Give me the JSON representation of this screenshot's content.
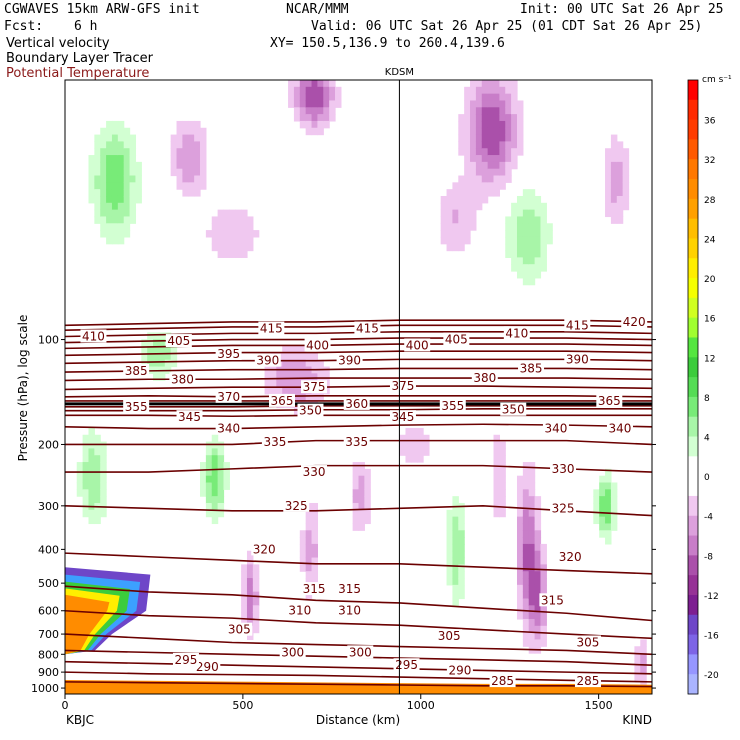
{
  "header": {
    "model": "CGWAVES 15km ARW-GFS init",
    "center": "NCAR/MMM",
    "init": "Init: 00 UTC Sat 26 Apr 25",
    "fcst_label": "Fcst:",
    "fcst_value": "6 h",
    "valid": "Valid: 06 UTC Sat 26 Apr 25 (01 CDT Sat 26 Apr 25)",
    "xy": "XY= 150.5,136.9 to 260.4,139.6",
    "field1": "Vertical velocity",
    "field2": "Boundary Layer Tracer",
    "field3": "Potential Temperature"
  },
  "colors": {
    "theta_contour": "#6b0000",
    "field3_text": "#8b1a1a"
  },
  "chart_data": {
    "type": "cross-section",
    "station_marker": "KDSM",
    "station_x_km": 940,
    "left_endpoint": "KBJC",
    "right_endpoint": "KIND",
    "xlabel": "Distance (km)",
    "ylabel": "Pressure (hPa), log scale",
    "xlim": [
      0,
      1650
    ],
    "ylim": [
      1040,
      18
    ],
    "x_ticks": [
      0,
      500,
      1000,
      1500
    ],
    "y_ticks": [
      100,
      200,
      300,
      400,
      500,
      600,
      700,
      800,
      900,
      1000
    ],
    "colorbar": {
      "unit": "cm s⁻¹",
      "tick_labels": [
        "36",
        "32",
        "28",
        "24",
        "20",
        "16",
        "12",
        "8",
        "4",
        "0",
        "-4",
        "-8",
        "-12",
        "-16",
        "-20"
      ],
      "tick_values": [
        36,
        32,
        28,
        24,
        20,
        16,
        12,
        8,
        4,
        0,
        -4,
        -8,
        -12,
        -16,
        -20
      ],
      "bins": [
        {
          "lo": 38,
          "hi": 40,
          "color": "#ff0000"
        },
        {
          "lo": 36,
          "hi": 38,
          "color": "#ff2a00"
        },
        {
          "lo": 34,
          "hi": 36,
          "color": "#ff3c00"
        },
        {
          "lo": 32,
          "hi": 34,
          "color": "#ff5a00"
        },
        {
          "lo": 30,
          "hi": 32,
          "color": "#ff7800"
        },
        {
          "lo": 28,
          "hi": 30,
          "color": "#ff8c00"
        },
        {
          "lo": 26,
          "hi": 28,
          "color": "#ffa000"
        },
        {
          "lo": 24,
          "hi": 26,
          "color": "#ffbe00"
        },
        {
          "lo": 22,
          "hi": 24,
          "color": "#ffd200"
        },
        {
          "lo": 20,
          "hi": 22,
          "color": "#ffee00"
        },
        {
          "lo": 18,
          "hi": 20,
          "color": "#f5ff00"
        },
        {
          "lo": 16,
          "hi": 18,
          "color": "#d0ff20"
        },
        {
          "lo": 14,
          "hi": 16,
          "color": "#a0ff30"
        },
        {
          "lo": 12,
          "hi": 14,
          "color": "#55e640"
        },
        {
          "lo": 10,
          "hi": 12,
          "color": "#3ccc3c"
        },
        {
          "lo": 8,
          "hi": 10,
          "color": "#55dc55"
        },
        {
          "lo": 6,
          "hi": 8,
          "color": "#78eb78"
        },
        {
          "lo": 4,
          "hi": 6,
          "color": "#a8f5a8"
        },
        {
          "lo": 2,
          "hi": 4,
          "color": "#d2ffd2"
        },
        {
          "lo": 0,
          "hi": 2,
          "color": "#ffffff"
        },
        {
          "lo": -2,
          "hi": 0,
          "color": "#ffffff"
        },
        {
          "lo": -4,
          "hi": -2,
          "color": "#f0c8f0"
        },
        {
          "lo": -6,
          "hi": -4,
          "color": "#dca0dc"
        },
        {
          "lo": -8,
          "hi": -6,
          "color": "#c87dc8"
        },
        {
          "lo": -10,
          "hi": -8,
          "color": "#aa50aa"
        },
        {
          "lo": -12,
          "hi": -10,
          "color": "#963296"
        },
        {
          "lo": -14,
          "hi": -12,
          "color": "#7d1e91"
        },
        {
          "lo": -16,
          "hi": -14,
          "color": "#6e46c8"
        },
        {
          "lo": -18,
          "hi": -16,
          "color": "#7d64e6"
        },
        {
          "lo": -20,
          "hi": -18,
          "color": "#9696ff"
        },
        {
          "lo": -22,
          "hi": -20,
          "color": "#aab4ff"
        }
      ]
    },
    "w_blobs": [
      {
        "x": 140,
        "p": 35,
        "rx": 60,
        "rp": 0.35,
        "w": 8
      },
      {
        "x": 350,
        "p": 30,
        "rx": 50,
        "rp": 0.25,
        "w": -6
      },
      {
        "x": 700,
        "p": 20,
        "rx": 55,
        "rp": 0.2,
        "w": -10
      },
      {
        "x": 1200,
        "p": 25,
        "rx": 70,
        "rp": 0.35,
        "w": -10
      },
      {
        "x": 1550,
        "p": 35,
        "rx": 40,
        "rp": 0.3,
        "w": -5
      },
      {
        "x": 470,
        "p": 50,
        "rx": 80,
        "rp": 0.2,
        "w": -4
      },
      {
        "x": 1300,
        "p": 50,
        "rx": 60,
        "rp": 0.3,
        "w": 6
      },
      {
        "x": 1100,
        "p": 45,
        "rx": 60,
        "rp": 0.25,
        "w": -4
      },
      {
        "x": 650,
        "p": 130,
        "rx": 90,
        "rp": 0.2,
        "w": -6
      },
      {
        "x": 260,
        "p": 110,
        "rx": 50,
        "rp": 0.15,
        "w": 6
      },
      {
        "x": 1220,
        "p": 250,
        "rx": 25,
        "rp": 0.35,
        "w": -4
      },
      {
        "x": 420,
        "p": 250,
        "rx": 30,
        "rp": 0.25,
        "w": 8
      },
      {
        "x": 1300,
        "p": 400,
        "rx": 30,
        "rp": 0.5,
        "w": -8
      },
      {
        "x": 1520,
        "p": 300,
        "rx": 25,
        "rp": 0.2,
        "w": 8
      },
      {
        "x": 1100,
        "p": 400,
        "rx": 25,
        "rp": 0.35,
        "w": 6
      },
      {
        "x": 830,
        "p": 280,
        "rx": 30,
        "rp": 0.25,
        "w": -5
      },
      {
        "x": 690,
        "p": 400,
        "rx": 25,
        "rp": 0.35,
        "w": -5
      },
      {
        "x": 520,
        "p": 550,
        "rx": 20,
        "rp": 0.25,
        "w": -8
      },
      {
        "x": 1330,
        "p": 550,
        "rx": 25,
        "rp": 0.3,
        "w": -7
      },
      {
        "x": 1620,
        "p": 850,
        "rx": 20,
        "rp": 0.15,
        "w": -5
      },
      {
        "x": 80,
        "p": 250,
        "rx": 40,
        "rp": 0.3,
        "w": 6
      },
      {
        "x": 980,
        "p": 200,
        "rx": 50,
        "rp": 0.15,
        "w": -4
      }
    ],
    "tracer_region": {
      "max_x": 240,
      "top_p": 450
    },
    "theta_contours": [
      {
        "theta": 285,
        "p": [
          960,
          965,
          970,
          975,
          980,
          985,
          985,
          990
        ]
      },
      {
        "theta": 290,
        "p": [
          900,
          910,
          915,
          920,
          930,
          940,
          950,
          960
        ]
      },
      {
        "theta": 295,
        "p": [
          840,
          850,
          860,
          870,
          880,
          890,
          900,
          910
        ]
      },
      {
        "theta": 300,
        "p": [
          780,
          790,
          800,
          810,
          820,
          830,
          840,
          860
        ]
      },
      {
        "theta": 305,
        "p": [
          700,
          720,
          740,
          750,
          760,
          770,
          780,
          800
        ]
      },
      {
        "theta": 310,
        "p": [
          600,
          620,
          630,
          650,
          660,
          680,
          700,
          720
        ]
      },
      {
        "theta": 315,
        "p": [
          510,
          530,
          540,
          560,
          570,
          590,
          610,
          640
        ]
      },
      {
        "theta": 320,
        "p": [
          410,
          420,
          430,
          440,
          440,
          450,
          460,
          470
        ]
      },
      {
        "theta": 325,
        "p": [
          300,
          305,
          310,
          310,
          305,
          300,
          310,
          320
        ]
      },
      {
        "theta": 330,
        "p": [
          240,
          240,
          235,
          230,
          230,
          230,
          235,
          240
        ]
      },
      {
        "theta": 335,
        "p": [
          200,
          200,
          200,
          195,
          195,
          195,
          195,
          200
        ]
      },
      {
        "theta": 340,
        "p": [
          178,
          180,
          180,
          178,
          176,
          175,
          176,
          178
        ]
      },
      {
        "theta": 345,
        "p": [
          165,
          165,
          166,
          165,
          165,
          165,
          165,
          165
        ]
      },
      {
        "theta": 350,
        "p": [
          160,
          160,
          160,
          159,
          159,
          158,
          158,
          158
        ]
      },
      {
        "theta": 355,
        "p": [
          156,
          156,
          156,
          155,
          155,
          155,
          155,
          155
        ]
      },
      {
        "theta": 360,
        "p": [
          153,
          153,
          153,
          153,
          153,
          153,
          153,
          153
        ]
      },
      {
        "theta": 365,
        "p": [
          150,
          150,
          150,
          150,
          150,
          150,
          150,
          150
        ]
      },
      {
        "theta": 370,
        "p": [
          146,
          145,
          146,
          145,
          145,
          145,
          145,
          146
        ]
      },
      {
        "theta": 375,
        "p": [
          139,
          138,
          137,
          137,
          136,
          136,
          137,
          138
        ]
      },
      {
        "theta": 380,
        "p": [
          131,
          130,
          130,
          129,
          129,
          129,
          129,
          130
        ]
      },
      {
        "theta": 385,
        "p": [
          124,
          123,
          122,
          122,
          121,
          121,
          121,
          122
        ]
      },
      {
        "theta": 390,
        "p": [
          117,
          116,
          115,
          115,
          114,
          114,
          114,
          115
        ]
      },
      {
        "theta": 395,
        "p": [
          111,
          110,
          109,
          109,
          108,
          108,
          108,
          109
        ]
      },
      {
        "theta": 400,
        "p": [
          106,
          105,
          104,
          104,
          103,
          103,
          103,
          104
        ]
      },
      {
        "theta": 405,
        "p": [
          102,
          101,
          100,
          100,
          99,
          99,
          99,
          100
        ]
      },
      {
        "theta": 410,
        "p": [
          98,
          97,
          96,
          96,
          95,
          95,
          95,
          96
        ]
      },
      {
        "theta": 415,
        "p": [
          94,
          93,
          92,
          92,
          91,
          91,
          91,
          92
        ]
      },
      {
        "theta": 420,
        "p": [
          91,
          90,
          89,
          89,
          88,
          88,
          88,
          89
        ]
      }
    ],
    "theta_x": [
      0,
      235,
      470,
      705,
      940,
      1175,
      1410,
      1650
    ],
    "theta_labels": [
      {
        "text": "285",
        "x": 1230,
        "p": 955
      },
      {
        "text": "285",
        "x": 1470,
        "p": 955
      },
      {
        "text": "290",
        "x": 400,
        "p": 870
      },
      {
        "text": "290",
        "x": 1110,
        "p": 890
      },
      {
        "text": "295",
        "x": 340,
        "p": 830
      },
      {
        "text": "295",
        "x": 960,
        "p": 860
      },
      {
        "text": "300",
        "x": 640,
        "p": 790
      },
      {
        "text": "300",
        "x": 830,
        "p": 790
      },
      {
        "text": "305",
        "x": 490,
        "p": 680
      },
      {
        "text": "305",
        "x": 1080,
        "p": 710
      },
      {
        "text": "305",
        "x": 1470,
        "p": 740
      },
      {
        "text": "310",
        "x": 660,
        "p": 600
      },
      {
        "text": "310",
        "x": 800,
        "p": 600
      },
      {
        "text": "315",
        "x": 700,
        "p": 520
      },
      {
        "text": "315",
        "x": 800,
        "p": 520
      },
      {
        "text": "315",
        "x": 1370,
        "p": 560
      },
      {
        "text": "320",
        "x": 560,
        "p": 400
      },
      {
        "text": "320",
        "x": 1420,
        "p": 420
      },
      {
        "text": "325",
        "x": 650,
        "p": 300
      },
      {
        "text": "325",
        "x": 1400,
        "p": 305
      },
      {
        "text": "330",
        "x": 700,
        "p": 240
      },
      {
        "text": "330",
        "x": 1400,
        "p": 235
      },
      {
        "text": "335",
        "x": 590,
        "p": 197
      },
      {
        "text": "335",
        "x": 820,
        "p": 197
      },
      {
        "text": "340",
        "x": 460,
        "p": 180
      },
      {
        "text": "340",
        "x": 1380,
        "p": 180
      },
      {
        "text": "340",
        "x": 1560,
        "p": 180
      },
      {
        "text": "345",
        "x": 350,
        "p": 167
      },
      {
        "text": "345",
        "x": 950,
        "p": 167
      },
      {
        "text": "350",
        "x": 690,
        "p": 160
      },
      {
        "text": "350",
        "x": 1260,
        "p": 159
      },
      {
        "text": "355",
        "x": 200,
        "p": 156
      },
      {
        "text": "355",
        "x": 1090,
        "p": 155
      },
      {
        "text": "360",
        "x": 820,
        "p": 153
      },
      {
        "text": "365",
        "x": 610,
        "p": 150
      },
      {
        "text": "365",
        "x": 1530,
        "p": 150
      },
      {
        "text": "370",
        "x": 460,
        "p": 146
      },
      {
        "text": "375",
        "x": 700,
        "p": 137
      },
      {
        "text": "375",
        "x": 950,
        "p": 136
      },
      {
        "text": "380",
        "x": 330,
        "p": 130
      },
      {
        "text": "380",
        "x": 1180,
        "p": 129
      },
      {
        "text": "385",
        "x": 200,
        "p": 123
      },
      {
        "text": "385",
        "x": 1310,
        "p": 121
      },
      {
        "text": "390",
        "x": 570,
        "p": 115
      },
      {
        "text": "390",
        "x": 800,
        "p": 115
      },
      {
        "text": "390",
        "x": 1440,
        "p": 114
      },
      {
        "text": "395",
        "x": 460,
        "p": 110
      },
      {
        "text": "400",
        "x": 710,
        "p": 104
      },
      {
        "text": "400",
        "x": 990,
        "p": 104
      },
      {
        "text": "405",
        "x": 320,
        "p": 101
      },
      {
        "text": "405",
        "x": 1100,
        "p": 100
      },
      {
        "text": "410",
        "x": 80,
        "p": 98
      },
      {
        "text": "410",
        "x": 1270,
        "p": 96
      },
      {
        "text": "415",
        "x": 580,
        "p": 93
      },
      {
        "text": "415",
        "x": 850,
        "p": 93
      },
      {
        "text": "415",
        "x": 1440,
        "p": 91
      },
      {
        "text": "420",
        "x": 1600,
        "p": 89
      }
    ]
  }
}
